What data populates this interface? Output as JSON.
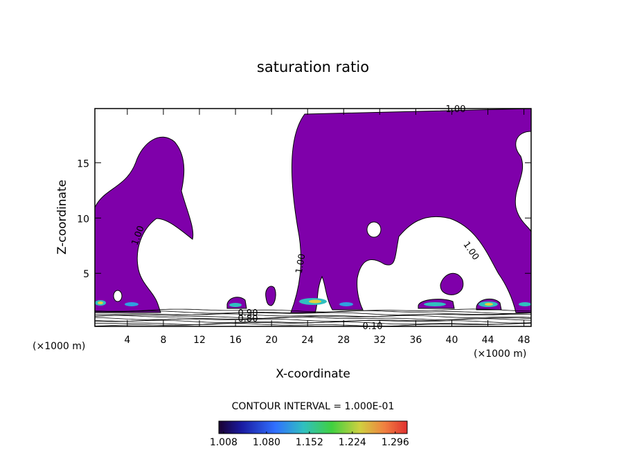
{
  "chart_data": {
    "type": "contour",
    "title": "saturation ratio",
    "xlabel": "X-coordinate",
    "ylabel": "Z-coordinate",
    "x_unit_left": "(×1000 m)",
    "x_unit_right": "(×1000 m)",
    "xlim": [
      0.4,
      48.8
    ],
    "xticks": [
      4,
      8,
      12,
      16,
      20,
      24,
      28,
      32,
      36,
      40,
      44,
      48
    ],
    "ylim": [
      0.2,
      19.9
    ],
    "yticks": [
      5,
      10,
      15
    ],
    "contour_labels": [
      "1.00",
      "1.00",
      "1.00",
      "1.00",
      "0.90",
      "0.80",
      "0.10"
    ],
    "contour_interval": "CONTOUR INTERVAL = 1.000E-01",
    "fill_color": "#7f00aa",
    "colorbar": {
      "lim": [
        1.0,
        1.316
      ],
      "ticks": [
        1.008,
        {
          "value": 1.08,
          "label": "1.080"
        },
        1.152,
        1.224,
        1.296
      ]
    }
  }
}
